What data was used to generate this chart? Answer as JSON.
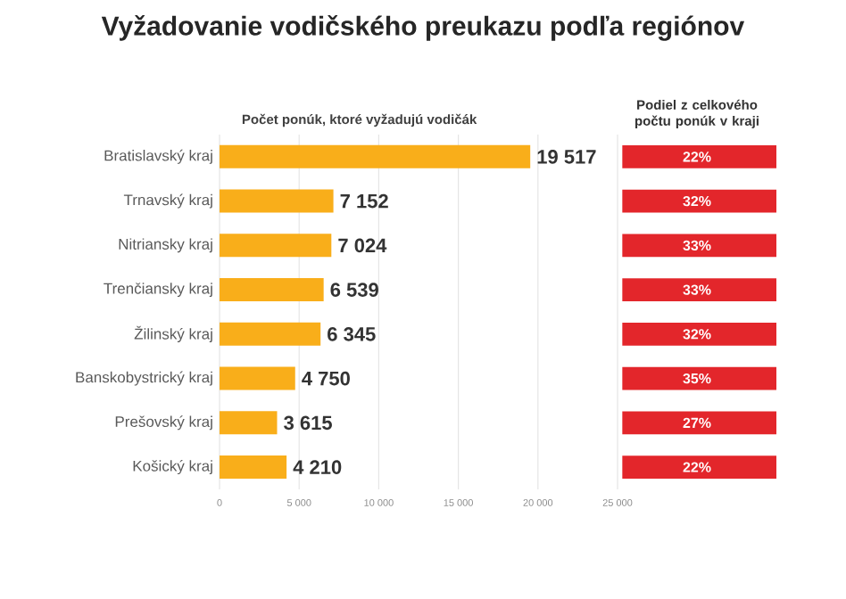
{
  "chart_data": [
    {
      "type": "bar",
      "orientation": "horizontal",
      "title": "Vyžadovanie vodičského preukazu podľa regiónov",
      "subtitle": "Počet ponúk, ktoré vyžadujú vodičák",
      "categories": [
        "Bratislavský kraj",
        "Trnavský kraj",
        "Nitriansky kraj",
        "Trenčiansky kraj",
        "Žilinský kraj",
        "Banskobystrický kraj",
        "Prešovský kraj",
        "Košický kraj"
      ],
      "values": [
        19517,
        7152,
        7024,
        6539,
        6345,
        4750,
        3615,
        4210
      ],
      "value_labels": [
        "19 517",
        "7 152",
        "7 024",
        "6 539",
        "6 345",
        "4 750",
        "3 615",
        "4 210"
      ],
      "color": "#f9ae1a",
      "xlim": [
        0,
        25000
      ],
      "xticks": [
        0,
        {
          "value": 5000,
          "label": "5 000"
        },
        {
          "value": 10000,
          "label": "10 000"
        },
        {
          "value": 15000,
          "label": "15 000"
        },
        {
          "value": 20000,
          "label": "20 000"
        },
        {
          "value": 25000,
          "label": "25 000"
        }
      ],
      "grid": "x"
    },
    {
      "type": "other",
      "title": "Podiel z celkového počtu ponúk v kraji",
      "categories": [
        null,
        null,
        null,
        null,
        null,
        null,
        null,
        null
      ],
      "values": [
        22,
        32,
        33,
        33,
        32,
        35,
        27,
        22
      ],
      "value_labels": [
        "22%",
        "32%",
        "33%",
        "33%",
        "32%",
        "35%",
        "27%",
        "22%"
      ],
      "color": "#e3262b"
    }
  ]
}
